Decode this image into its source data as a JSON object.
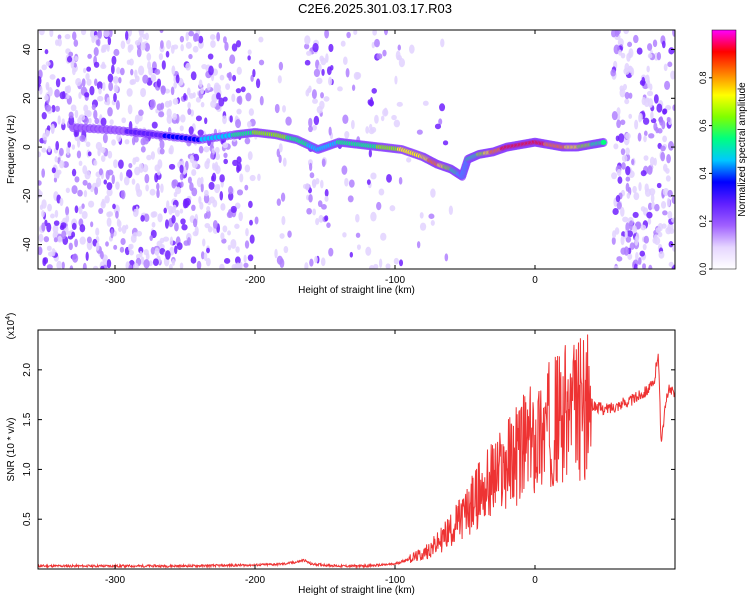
{
  "title": "C2E6.2025.301.03.17.R03",
  "chart_data": [
    {
      "type": "heatmap",
      "title": "C2E6.2025.301.03.17.R03",
      "xlabel": "Height of straight line (km)",
      "ylabel": "Frequency (Hz)",
      "xlim": [
        -355,
        100
      ],
      "ylim": [
        -50,
        48
      ],
      "xticks": [
        -300,
        -200,
        -100,
        0
      ],
      "yticks": [
        -40,
        -20,
        0,
        20,
        40
      ],
      "colorbar": {
        "label": "Normalized spectral amplitude",
        "range": [
          0,
          1
        ],
        "ticks": [
          0.0,
          0.2,
          0.4,
          0.6,
          0.8
        ],
        "colors": [
          "#ffffff",
          "#e6d6ff",
          "#a060ff",
          "#6020ff",
          "#0000ff",
          "#00c8ff",
          "#00ff80",
          "#80ff00",
          "#ffff00",
          "#ff8000",
          "#ff0000",
          "#ff00ff"
        ]
      },
      "ridge": {
        "x": [
          -330,
          -300,
          -270,
          -240,
          -215,
          -200,
          -185,
          -170,
          -155,
          -140,
          -125,
          -110,
          -95,
          -80,
          -70,
          -60,
          -52,
          -48,
          -40,
          -30,
          -20,
          -10,
          0,
          10,
          20,
          30,
          40,
          50
        ],
        "y": [
          8,
          7,
          5,
          3,
          5,
          6,
          5,
          3,
          -1,
          2,
          1,
          0,
          -1,
          -4,
          -7,
          -9,
          -12,
          -5,
          -3,
          -2,
          0,
          1,
          2,
          1,
          0,
          0,
          1,
          2
        ],
        "amplitude": [
          0.15,
          0.2,
          0.3,
          0.4,
          0.5,
          0.6,
          0.65,
          0.55,
          0.45,
          0.5,
          0.55,
          0.6,
          0.7,
          0.75,
          0.8,
          0.6,
          0.45,
          0.5,
          0.6,
          0.8,
          0.9,
          0.95,
          0.9,
          0.85,
          0.8,
          0.7,
          0.6,
          0.5
        ]
      }
    },
    {
      "type": "line",
      "xlabel": "Height of straight line (km)",
      "ylabel": "SNR (10 * v/v)",
      "yscale_label": "(x10",
      "yscale_exp": "4",
      "yscale_close": ")",
      "xlim": [
        -355,
        100
      ],
      "ylim": [
        0,
        2.4
      ],
      "xticks": [
        -300,
        -200,
        -100,
        0
      ],
      "yticks": [
        0.5,
        1.0,
        1.5,
        2.0
      ],
      "color": "#ee3333",
      "series": [
        {
          "x": [
            -355,
            -300,
            -250,
            -200,
            -180,
            -170,
            -165,
            -160,
            -140,
            -120,
            -100,
            -80,
            -70,
            -60,
            -50,
            -40,
            -30,
            -20,
            -10,
            0,
            10,
            20,
            30,
            40,
            50,
            60,
            70,
            75,
            80,
            85,
            88,
            90,
            95,
            100
          ],
          "y": [
            0.03,
            0.03,
            0.03,
            0.04,
            0.05,
            0.07,
            0.09,
            0.05,
            0.03,
            0.03,
            0.05,
            0.15,
            0.25,
            0.4,
            0.55,
            0.75,
            0.9,
            1.05,
            1.2,
            1.3,
            1.45,
            1.55,
            1.6,
            1.65,
            1.6,
            1.65,
            1.7,
            1.75,
            1.8,
            1.85,
            2.2,
            1.3,
            1.8,
            1.75
          ]
        }
      ]
    }
  ]
}
